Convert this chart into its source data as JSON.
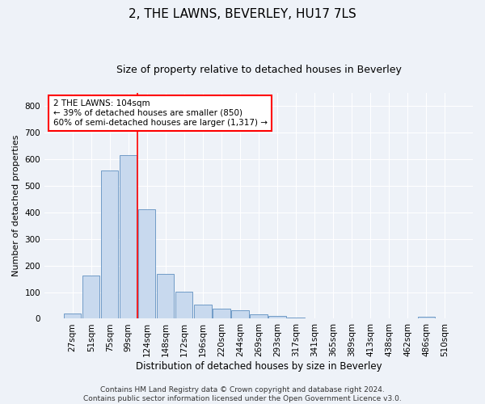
{
  "title": "2, THE LAWNS, BEVERLEY, HU17 7LS",
  "subtitle": "Size of property relative to detached houses in Beverley",
  "xlabel": "Distribution of detached houses by size in Beverley",
  "ylabel": "Number of detached properties",
  "bar_color": "#c8d9ee",
  "bar_edge_color": "#6090c0",
  "categories": [
    "27sqm",
    "51sqm",
    "75sqm",
    "99sqm",
    "124sqm",
    "148sqm",
    "172sqm",
    "196sqm",
    "220sqm",
    "244sqm",
    "269sqm",
    "293sqm",
    "317sqm",
    "341sqm",
    "365sqm",
    "389sqm",
    "413sqm",
    "438sqm",
    "462sqm",
    "486sqm",
    "510sqm"
  ],
  "values": [
    20,
    163,
    558,
    617,
    413,
    168,
    102,
    52,
    38,
    31,
    16,
    9,
    5,
    0,
    0,
    0,
    0,
    0,
    0,
    7,
    0
  ],
  "ylim": [
    0,
    850
  ],
  "yticks": [
    0,
    100,
    200,
    300,
    400,
    500,
    600,
    700,
    800
  ],
  "vline_x": 3.5,
  "annotation_text": "2 THE LAWNS: 104sqm\n← 39% of detached houses are smaller (850)\n60% of semi-detached houses are larger (1,317) →",
  "annotation_box_color": "white",
  "annotation_box_edge_color": "red",
  "vline_color": "red",
  "background_color": "#eef2f8",
  "grid_color": "white",
  "footer_text": "Contains HM Land Registry data © Crown copyright and database right 2024.\nContains public sector information licensed under the Open Government Licence v3.0.",
  "title_fontsize": 11,
  "subtitle_fontsize": 9,
  "xlabel_fontsize": 8.5,
  "ylabel_fontsize": 8,
  "tick_fontsize": 7.5,
  "annotation_fontsize": 7.5,
  "footer_fontsize": 6.5
}
